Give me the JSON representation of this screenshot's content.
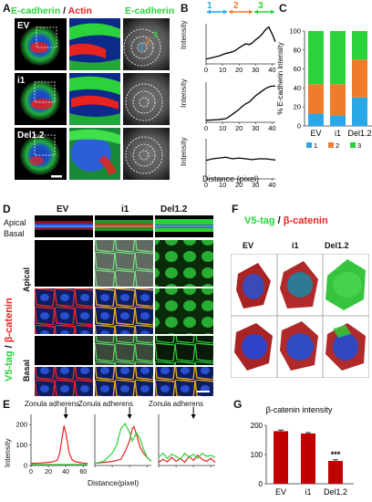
{
  "colors": {
    "green": "#2bd33b",
    "red": "#e8231f",
    "blue": "#2a56d8",
    "orange": "#f07b2a",
    "cyan": "#2aa7e6",
    "darkred": "#c00000",
    "black": "#000000"
  },
  "panelA": {
    "letter": "A",
    "header_green": "E-cadherin",
    "header_sep": " / ",
    "header_red": "Actin",
    "header_right": "E-cadherin",
    "rows": [
      {
        "label": "EV"
      },
      {
        "label": "i1"
      },
      {
        "label": "Del1.2"
      }
    ],
    "ring_numbers": [
      "1",
      "2",
      "3"
    ]
  },
  "panelB": {
    "letter": "B",
    "region_labels": [
      "1",
      "2",
      "3"
    ],
    "ylabel": "Intensity",
    "xlabel": "Distance (pixel)",
    "ticks": [
      "0",
      "10",
      "20",
      "30",
      "40"
    ]
  },
  "panelC": {
    "letter": "C"
  },
  "panelD": {
    "letter": "D",
    "cols": [
      "EV",
      "i1",
      "Del1.2"
    ],
    "apical": "Apical",
    "basal": "Basal",
    "zx": "ZX",
    "side_green": "V5-tag",
    "side_sep": " / ",
    "side_red": "β-catenin",
    "row_apical": "Apical",
    "row_basal": "Basal"
  },
  "panelE": {
    "letter": "E",
    "annotations": [
      "Zonula adherens",
      "Zonula adherens",
      "Zonula adherens"
    ],
    "ylabel": "Intensity",
    "xlabel": "Distance(pixel)",
    "yticks": [
      "0",
      "100",
      "200"
    ],
    "xticks": [
      "0",
      "20",
      "40",
      "60"
    ]
  },
  "panelF": {
    "letter": "F",
    "title_green": "V5-tag",
    "title_sep": " / ",
    "title_red": "β-catenin",
    "cols": [
      "EV",
      "i1",
      "Del1.2"
    ]
  },
  "panelG": {
    "letter": "G"
  },
  "chart_data": [
    {
      "panel": "B",
      "type": "line",
      "xlabel": "Distance (pixel)",
      "ylabel": "Intensity",
      "xlim": [
        0,
        42
      ],
      "series": [
        {
          "x": [
            0,
            4,
            8,
            12,
            16,
            18,
            20,
            22,
            24,
            26,
            28,
            30,
            32,
            34,
            36,
            38,
            40,
            42
          ],
          "y": [
            0.12,
            0.16,
            0.2,
            0.26,
            0.3,
            0.34,
            0.4,
            0.45,
            0.5,
            0.48,
            0.52,
            0.6,
            0.66,
            0.74,
            0.85,
            0.92,
            0.75,
            0.55
          ]
        },
        {
          "x": [
            0,
            4,
            8,
            12,
            14,
            16,
            18,
            20,
            22,
            24,
            26,
            28,
            30,
            32,
            34,
            36,
            38,
            40,
            42
          ],
          "y": [
            0.05,
            0.06,
            0.07,
            0.09,
            0.14,
            0.2,
            0.26,
            0.32,
            0.4,
            0.46,
            0.5,
            0.58,
            0.66,
            0.72,
            0.78,
            0.84,
            0.88,
            0.9,
            0.9
          ]
        },
        {
          "x": [
            0,
            4,
            8,
            12,
            16,
            20,
            24,
            28,
            32,
            36,
            40,
            42
          ],
          "y": [
            0.46,
            0.5,
            0.52,
            0.54,
            0.5,
            0.52,
            0.5,
            0.48,
            0.5,
            0.5,
            0.48,
            0.47
          ]
        }
      ]
    },
    {
      "panel": "C",
      "type": "bar",
      "stacked": true,
      "categories": [
        "EV",
        "i1",
        "Del1.2"
      ],
      "ylabel": "% E-cadherin intensity",
      "ylim": [
        0,
        100
      ],
      "yticks": [
        0,
        20,
        40,
        60,
        80,
        100
      ],
      "legend": [
        "1",
        "2",
        "3"
      ],
      "series": [
        {
          "name": "1",
          "color": "#2aa7e6",
          "values": [
            13,
            11,
            30
          ]
        },
        {
          "name": "2",
          "color": "#f07b2a",
          "values": [
            31,
            33,
            40
          ]
        },
        {
          "name": "3",
          "color": "#2bd33b",
          "values": [
            56,
            56,
            30
          ]
        }
      ]
    },
    {
      "panel": "E",
      "type": "line",
      "xlabel": "Distance(pixel)",
      "ylabel": "Intensity",
      "ylim": [
        0,
        250
      ],
      "plots": [
        {
          "series": [
            {
              "color": "red",
              "x": [
                0,
                10,
                20,
                25,
                30,
                33,
                36,
                38,
                40,
                42,
                44,
                47,
                50,
                55,
                60,
                65
              ],
              "y": [
                10,
                12,
                15,
                18,
                25,
                60,
                140,
                195,
                160,
                110,
                60,
                30,
                20,
                15,
                12,
                10
              ]
            },
            {
              "color": "green",
              "x": [
                0,
                65
              ],
              "y": [
                5,
                5
              ]
            }
          ]
        },
        {
          "series": [
            {
              "color": "red",
              "x": [
                0,
                10,
                20,
                30,
                35,
                40,
                43,
                45,
                48,
                52,
                56,
                60,
                65
              ],
              "y": [
                10,
                15,
                20,
                30,
                70,
                120,
                180,
                190,
                150,
                90,
                60,
                40,
                20
              ]
            },
            {
              "color": "green",
              "x": [
                0,
                10,
                20,
                25,
                30,
                35,
                40,
                43,
                45,
                48,
                52,
                56,
                60,
                65
              ],
              "y": [
                10,
                20,
                60,
                100,
                180,
                205,
                160,
                120,
                135,
                160,
                130,
                80,
                40,
                20
              ]
            }
          ]
        },
        {
          "series": [
            {
              "color": "red",
              "x": [
                0,
                5,
                10,
                15,
                20,
                25,
                30,
                35,
                40,
                45,
                50,
                55,
                60,
                65
              ],
              "y": [
                15,
                30,
                18,
                40,
                20,
                35,
                15,
                45,
                25,
                50,
                30,
                20,
                35,
                15
              ]
            },
            {
              "color": "green",
              "x": [
                0,
                5,
                10,
                15,
                20,
                25,
                30,
                35,
                40,
                45,
                50,
                55,
                60,
                65
              ],
              "y": [
                40,
                60,
                35,
                55,
                45,
                30,
                60,
                40,
                55,
                35,
                60,
                45,
                50,
                40
              ]
            }
          ]
        }
      ]
    },
    {
      "panel": "G",
      "type": "bar",
      "title": "β-catenin intensity",
      "categories": [
        "EV",
        "i1",
        "Del1.2"
      ],
      "values": [
        180,
        172,
        78
      ],
      "errors": [
        4,
        3,
        4
      ],
      "ylim": [
        0,
        200
      ],
      "yticks": [
        0,
        100,
        200
      ],
      "significance": [
        "",
        "",
        "***"
      ]
    }
  ]
}
